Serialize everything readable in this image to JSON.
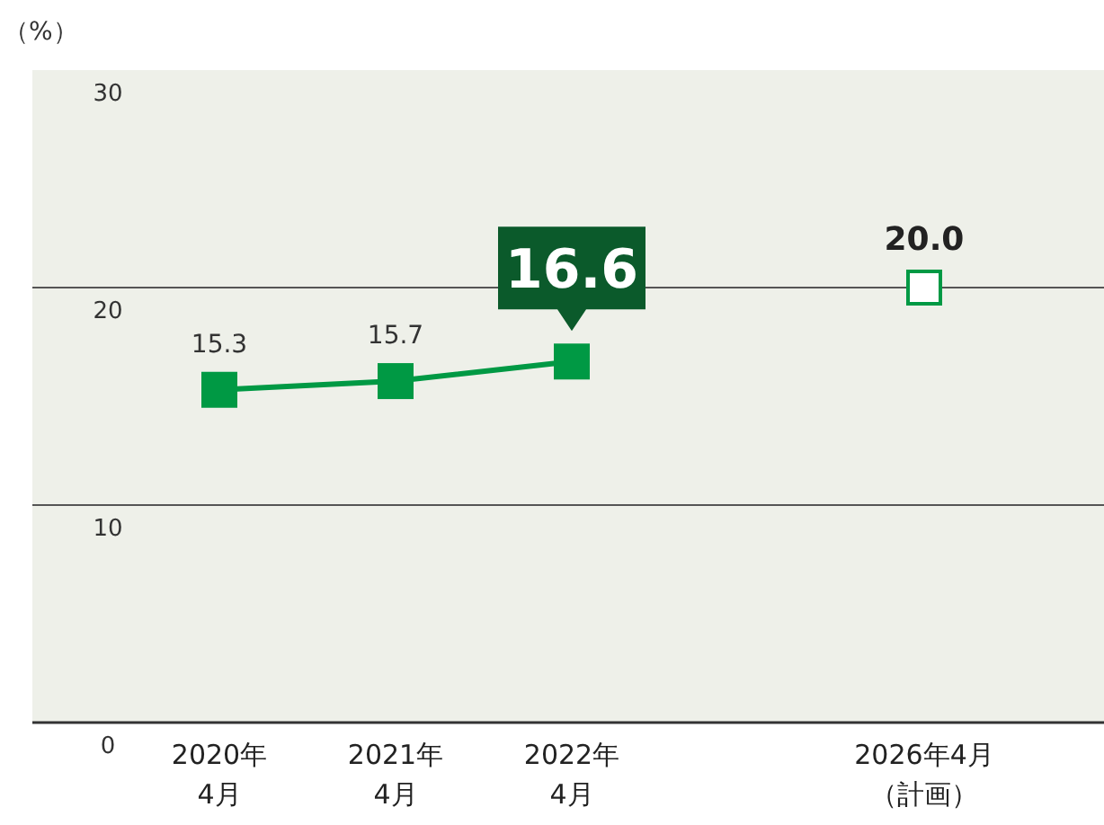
{
  "chart_data": {
    "type": "line",
    "ylabel": "（%）",
    "categories": [
      "2020年\n4月",
      "2021年\n4月",
      "2022年\n4月",
      null,
      "2026年4月（計画）"
    ],
    "series": [
      {
        "type": "line",
        "color": "#009944",
        "values": [
          15.3,
          15.7,
          16.6,
          null,
          null
        ],
        "value_labels": [
          "15.3",
          "15.7",
          "16.6",
          null,
          null
        ]
      },
      {
        "type": "scatter",
        "color": "#009944",
        "values": [
          null,
          null,
          null,
          null,
          20.0
        ],
        "value_labels": [
          null,
          null,
          null,
          null,
          "20.0"
        ]
      }
    ],
    "ylim": [
      0,
      30
    ],
    "yticks": [
      0,
      10,
      20,
      30
    ],
    "grid": "y",
    "marker": "square"
  }
}
